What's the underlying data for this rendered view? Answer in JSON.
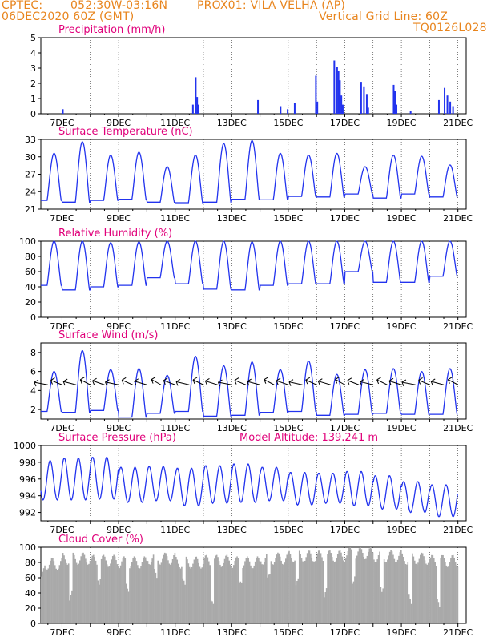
{
  "header": {
    "org": "CPTEC:",
    "coords": "052:30W-03:16N",
    "station": "PROX01: VILA VELHA (AP)",
    "date": "06DEC2020 60Z (GMT)",
    "grid_note": "Vertical Grid Line: 60Z",
    "code": "TQ0126L028"
  },
  "colors": {
    "header": "#e8851e",
    "title": "#e0007a",
    "series": "#2233ee",
    "cloud": "#a9a9a9"
  },
  "x_ticks": [
    "7DEC",
    "9DEC",
    "11DEC",
    "13DEC",
    "15DEC",
    "17DEC",
    "19DEC",
    "21DEC"
  ],
  "chart_data": [
    {
      "type": "bar",
      "title": "Precipitation (mm/h)",
      "ylim": [
        0,
        5
      ],
      "yticks": [
        0,
        1,
        2,
        3,
        4,
        5
      ],
      "x": [
        7.0,
        11.6,
        11.7,
        11.75,
        11.8,
        13.9,
        14.7,
        14.95,
        15.2,
        15.95,
        16.0,
        16.6,
        16.7,
        16.75,
        16.8,
        16.85,
        16.9,
        17.55,
        17.65,
        17.75,
        17.8,
        18.7,
        18.75,
        18.8,
        19.3,
        20.3,
        20.5,
        20.6,
        20.7,
        20.8
      ],
      "values": [
        0.3,
        0.6,
        2.4,
        1.1,
        0.6,
        0.9,
        0.5,
        0.3,
        0.7,
        2.5,
        0.8,
        3.5,
        3.1,
        2.8,
        2.2,
        1.2,
        0.6,
        2.1,
        1.8,
        1.3,
        0.4,
        1.9,
        1.5,
        0.6,
        0.2,
        0.9,
        1.7,
        1.2,
        0.8,
        0.5
      ]
    },
    {
      "type": "line",
      "title": "Surface Temperature (nC)",
      "ylim": [
        21,
        33
      ],
      "yticks": [
        21,
        24,
        27,
        30,
        33
      ],
      "days": [
        {
          "max": 31.3,
          "min": 22.3
        },
        {
          "max": 30.6,
          "min": 22.5
        },
        {
          "max": 32.6,
          "min": 22.2
        },
        {
          "max": 30.3,
          "min": 22.5
        },
        {
          "max": 30.8,
          "min": 22.7
        },
        {
          "max": 28.3,
          "min": 22.2
        },
        {
          "max": 30.3,
          "min": 22.1
        },
        {
          "max": 32.3,
          "min": 22.2
        },
        {
          "max": 32.8,
          "min": 22.7
        },
        {
          "max": 30.6,
          "min": 22.6
        },
        {
          "max": 30.3,
          "min": 23.2
        },
        {
          "max": 30.6,
          "min": 23.1
        },
        {
          "max": 28.3,
          "min": 23.6
        },
        {
          "max": 30.3,
          "min": 22.9
        },
        {
          "max": 30.1,
          "min": 23.6
        },
        {
          "max": 28.6,
          "min": 23.1
        },
        {
          "max": 30.6,
          "min": 22.8
        }
      ]
    },
    {
      "type": "line",
      "title": "Relative Humidity (%)",
      "ylim": [
        0,
        100
      ],
      "yticks": [
        0,
        20,
        40,
        60,
        80,
        100
      ],
      "days": [
        {
          "min": 38,
          "max": 100
        },
        {
          "min": 42,
          "max": 100
        },
        {
          "min": 36,
          "max": 100
        },
        {
          "min": 40,
          "max": 98
        },
        {
          "min": 42,
          "max": 99
        },
        {
          "min": 52,
          "max": 100
        },
        {
          "min": 44,
          "max": 100
        },
        {
          "min": 37,
          "max": 100
        },
        {
          "min": 36,
          "max": 99
        },
        {
          "min": 42,
          "max": 100
        },
        {
          "min": 44,
          "max": 100
        },
        {
          "min": 44,
          "max": 100
        },
        {
          "min": 60,
          "max": 100
        },
        {
          "min": 46,
          "max": 100
        },
        {
          "min": 46,
          "max": 100
        },
        {
          "min": 54,
          "max": 100
        },
        {
          "min": 45,
          "max": 100
        }
      ]
    },
    {
      "type": "line",
      "title": "Surface Wind (m/s)",
      "ylim": [
        1,
        9
      ],
      "yticks": [
        2,
        4,
        6,
        8
      ],
      "days": [
        {
          "max": 5.6,
          "min": 1.6
        },
        {
          "max": 6.0,
          "min": 1.8
        },
        {
          "max": 8.2,
          "min": 1.7
        },
        {
          "max": 6.2,
          "min": 1.9
        },
        {
          "max": 6.3,
          "min": 1.2
        },
        {
          "max": 5.6,
          "min": 1.6
        },
        {
          "max": 7.6,
          "min": 1.8
        },
        {
          "max": 6.6,
          "min": 1.3
        },
        {
          "max": 7.0,
          "min": 1.4
        },
        {
          "max": 6.2,
          "min": 1.7
        },
        {
          "max": 7.1,
          "min": 1.8
        },
        {
          "max": 5.7,
          "min": 1.4
        },
        {
          "max": 6.2,
          "min": 1.5
        },
        {
          "max": 6.3,
          "min": 1.6
        },
        {
          "max": 6.0,
          "min": 1.5
        },
        {
          "max": 6.3,
          "min": 1.5
        },
        {
          "max": 7.0,
          "min": 2.0
        }
      ]
    },
    {
      "type": "line",
      "title": "Surface Pressure (hPa)",
      "subtitle": "Model Altitude: 139.241 m",
      "ylim": [
        991,
        1000
      ],
      "yticks": [
        992,
        994,
        996,
        998,
        1000
      ],
      "days": [
        {
          "hi": 997.2,
          "lo": 994.4
        },
        {
          "hi": 998.2,
          "lo": 993.5
        },
        {
          "hi": 998.5,
          "lo": 993.5
        },
        {
          "hi": 998.6,
          "lo": 993.6
        },
        {
          "hi": 997.4,
          "lo": 993.2
        },
        {
          "hi": 997.5,
          "lo": 993.4
        },
        {
          "hi": 997.3,
          "lo": 992.8
        },
        {
          "hi": 997.6,
          "lo": 993.1
        },
        {
          "hi": 997.8,
          "lo": 993.2
        },
        {
          "hi": 997.4,
          "lo": 993.4
        },
        {
          "hi": 996.8,
          "lo": 992.9
        },
        {
          "hi": 996.7,
          "lo": 993.1
        },
        {
          "hi": 996.9,
          "lo": 992.8
        },
        {
          "hi": 996.4,
          "lo": 992.4
        },
        {
          "hi": 995.7,
          "lo": 992.0
        },
        {
          "hi": 995.3,
          "lo": 991.5
        },
        {
          "hi": 994.6,
          "lo": 991.6
        }
      ]
    },
    {
      "type": "area",
      "title": "Cloud Cover (%)",
      "ylim": [
        0,
        100
      ],
      "yticks": [
        0,
        20,
        40,
        60,
        80,
        100
      ],
      "days": [
        {
          "mean": 80,
          "dip": 25
        },
        {
          "mean": 78,
          "dip": 55
        },
        {
          "mean": 85,
          "dip": 30
        },
        {
          "mean": 82,
          "dip": 50
        },
        {
          "mean": 80,
          "dip": 40
        },
        {
          "mean": 85,
          "dip": 55
        },
        {
          "mean": 80,
          "dip": 40
        },
        {
          "mean": 82,
          "dip": 10
        },
        {
          "mean": 80,
          "dip": 35
        },
        {
          "mean": 85,
          "dip": 45
        },
        {
          "mean": 88,
          "dip": 40
        },
        {
          "mean": 88,
          "dip": 30
        },
        {
          "mean": 92,
          "dip": 50
        },
        {
          "mean": 88,
          "dip": 40
        },
        {
          "mean": 85,
          "dip": 25
        },
        {
          "mean": 82,
          "dip": 15
        },
        {
          "mean": 85,
          "dip": 45
        }
      ]
    }
  ]
}
